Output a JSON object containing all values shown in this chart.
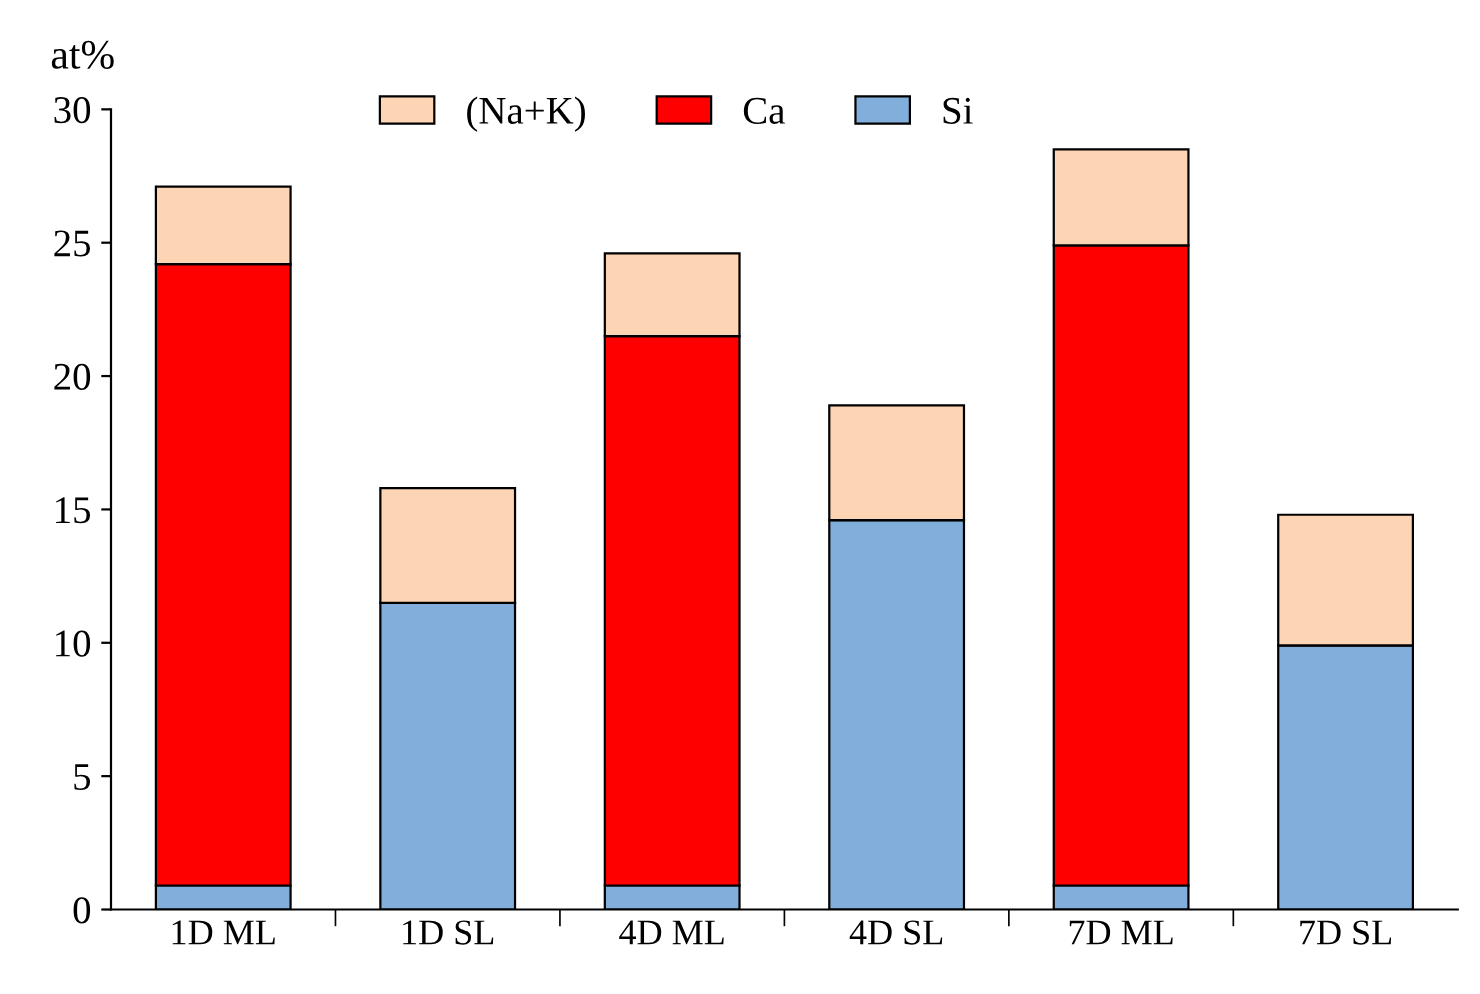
{
  "chart_data": {
    "type": "bar",
    "stacked": true,
    "ylabel": "at%",
    "categories": [
      "1D ML",
      "1D SL",
      "4D ML",
      "4D SL",
      "7D ML",
      "7D SL"
    ],
    "series": [
      {
        "name": "Si",
        "color": "#82aedb",
        "values": [
          0.9,
          11.5,
          0.9,
          14.6,
          0.9,
          9.9
        ]
      },
      {
        "name": "Ca",
        "color": "#ff0000",
        "values": [
          23.3,
          0,
          20.6,
          0,
          24.0,
          0
        ]
      },
      {
        "name": "(Na+K)",
        "color": "#fdd4b4",
        "values": [
          2.9,
          4.3,
          3.1,
          4.3,
          3.6,
          4.9
        ]
      }
    ],
    "ylim": [
      0,
      30
    ],
    "yticks": [
      0,
      5,
      10,
      15,
      20,
      25,
      30
    ],
    "grid": false,
    "legend": "top"
  }
}
